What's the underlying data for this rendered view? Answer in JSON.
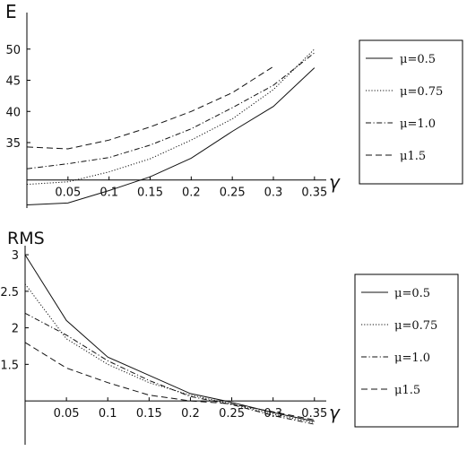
{
  "chart_data": [
    {
      "type": "line",
      "ylabel": "E",
      "xlabel": "γ",
      "xlim": [
        0.0,
        0.36
      ],
      "ylim": [
        24.5,
        55
      ],
      "x_origin": 0.0,
      "y_origin": 29.0,
      "xticks": [
        0.05,
        0.1,
        0.15,
        0.2,
        0.25,
        0.3,
        0.35
      ],
      "xtick_labels": [
        "0.05",
        "0.1",
        "0.15",
        "0.2",
        "0.25",
        "0.3",
        "0.35"
      ],
      "yticks": [
        35,
        40,
        45,
        50
      ],
      "ytick_labels": [
        "35",
        "40",
        "45",
        "50"
      ],
      "legend_location": "right",
      "series": [
        {
          "name": "μ=0.5",
          "style": "solid",
          "x": [
            0.0,
            0.05,
            0.1,
            0.15,
            0.2,
            0.25,
            0.3,
            0.35
          ],
          "y": [
            25.0,
            25.3,
            27.3,
            29.5,
            32.5,
            36.8,
            40.8,
            47.0
          ]
        },
        {
          "name": "μ=0.75",
          "style": "dotted",
          "x": [
            0.0,
            0.05,
            0.1,
            0.15,
            0.2,
            0.25,
            0.3,
            0.35
          ],
          "y": [
            28.3,
            28.7,
            30.3,
            32.4,
            35.4,
            38.8,
            43.5,
            50.0
          ]
        },
        {
          "name": "μ=1.0",
          "style": "dashdot",
          "x": [
            0.0,
            0.05,
            0.1,
            0.15,
            0.2,
            0.25,
            0.3,
            0.35
          ],
          "y": [
            30.8,
            31.6,
            32.6,
            34.6,
            37.2,
            40.6,
            44.2,
            49.4
          ]
        },
        {
          "name": "μ1.5",
          "style": "dashed",
          "x": [
            0.0,
            0.05,
            0.1,
            0.15,
            0.2,
            0.25,
            0.3
          ],
          "y": [
            34.3,
            34.0,
            35.4,
            37.5,
            40.0,
            43.0,
            47.2
          ]
        }
      ]
    },
    {
      "type": "line",
      "ylabel": "RMS",
      "xlabel": "γ",
      "xlim": [
        0.0,
        0.36
      ],
      "ylim": [
        0.4,
        3.05
      ],
      "x_origin": 0.0,
      "y_origin": 1.0,
      "xticks": [
        0.05,
        0.1,
        0.15,
        0.2,
        0.25,
        0.3,
        0.35
      ],
      "xtick_labels": [
        "0.05",
        "0.1",
        "0.15",
        "0.2",
        "0.25",
        "0.3",
        "0.35"
      ],
      "yticks": [
        1.5,
        2,
        2.5,
        3
      ],
      "ytick_labels": [
        "1.5",
        "2",
        "2.5",
        "3"
      ],
      "legend_location": "right",
      "series": [
        {
          "name": "μ=0.5",
          "style": "solid",
          "x": [
            0.0,
            0.05,
            0.1,
            0.15,
            0.2,
            0.25,
            0.3,
            0.35
          ],
          "y": [
            3.0,
            2.1,
            1.6,
            1.35,
            1.1,
            0.98,
            0.84,
            0.72
          ]
        },
        {
          "name": "μ=0.75",
          "style": "dotted",
          "x": [
            0.0,
            0.05,
            0.1,
            0.15,
            0.2,
            0.25,
            0.3,
            0.35
          ],
          "y": [
            2.6,
            1.85,
            1.5,
            1.25,
            1.08,
            0.96,
            0.82,
            0.7
          ]
        },
        {
          "name": "μ=1.0",
          "style": "dashdot",
          "x": [
            0.0,
            0.05,
            0.1,
            0.15,
            0.2,
            0.25,
            0.3,
            0.35
          ],
          "y": [
            2.2,
            1.9,
            1.55,
            1.28,
            1.06,
            0.95,
            0.8,
            0.68
          ]
        },
        {
          "name": "μ1.5",
          "style": "dashed",
          "x": [
            0.0,
            0.05,
            0.1,
            0.15,
            0.2,
            0.25,
            0.3,
            0.35
          ],
          "y": [
            1.8,
            1.45,
            1.25,
            1.08,
            1.0,
            0.96,
            0.85,
            0.74
          ]
        }
      ]
    }
  ]
}
